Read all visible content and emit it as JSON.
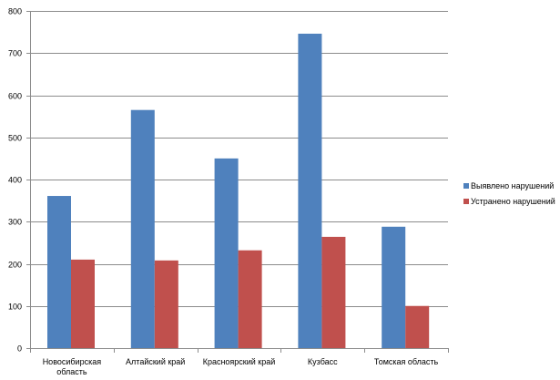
{
  "chart_data": {
    "type": "bar",
    "categories": [
      [
        "Новосибирская",
        "область"
      ],
      [
        "Алтайский край"
      ],
      [
        "Красноярский край"
      ],
      [
        "Кузбасс"
      ],
      [
        "Томская область"
      ]
    ],
    "series": [
      {
        "name": "Выявлено нарушений",
        "values": [
          361,
          565,
          450,
          746,
          288
        ],
        "color": "#4f81bd"
      },
      {
        "name": "Устранено нарушений",
        "values": [
          210,
          208,
          232,
          264,
          100
        ],
        "color": "#c0504d"
      }
    ],
    "title": "",
    "xlabel": "",
    "ylabel": "",
    "ylim": [
      0,
      800
    ],
    "yticks": [
      0,
      100,
      200,
      300,
      400,
      500,
      600,
      700,
      800
    ],
    "grid": true,
    "legend_position": "right"
  },
  "colors": {
    "gridline": "#8c8c8c",
    "axis": "#8c8c8c",
    "text": "#000000"
  }
}
